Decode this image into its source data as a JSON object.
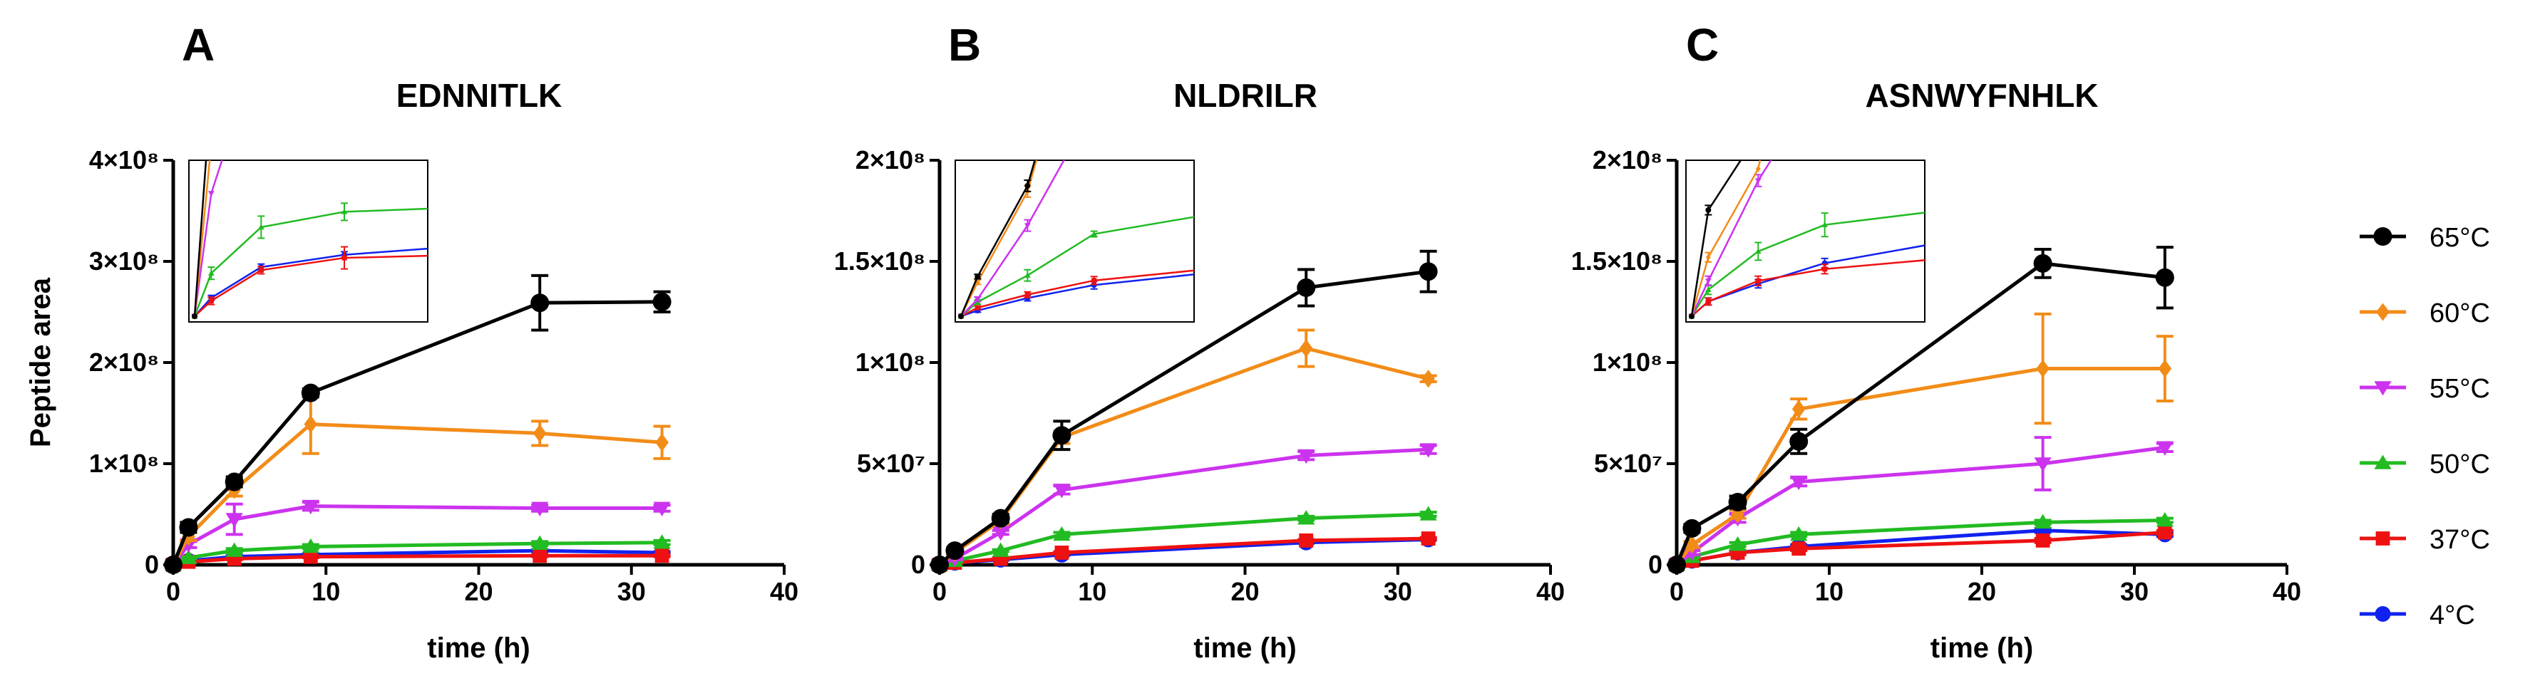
{
  "figure": {
    "legend": [
      {
        "name": "65°C",
        "color": "#000000",
        "marker": "circle"
      },
      {
        "name": "60°C",
        "color": "#F28C18",
        "marker": "diamond"
      },
      {
        "name": "55°C",
        "color": "#CC33EE",
        "marker": "triangle-down"
      },
      {
        "name": "50°C",
        "color": "#22BB22",
        "marker": "triangle-up"
      },
      {
        "name": "37°C",
        "color": "#EE1111",
        "marker": "square"
      },
      {
        "name": "4°C",
        "color": "#1122EE",
        "marker": "circle"
      }
    ]
  },
  "chart_data": [
    {
      "panel": "A",
      "type": "line",
      "title": "EDNNITLK",
      "xlabel": "time (h)",
      "ylabel": "Peptide area",
      "xlim": [
        0,
        40
      ],
      "ylim": [
        0,
        400000000
      ],
      "xticks": [
        0,
        10,
        20,
        30,
        40
      ],
      "xtick_labels": [
        "0",
        "10",
        "20",
        "30",
        "40"
      ],
      "yticks": [
        0,
        100000000,
        200000000,
        300000000,
        400000000
      ],
      "ytick_labels": [
        "0",
        "1×10⁸",
        "2×10⁸",
        "3×10⁸",
        "4×10⁸"
      ],
      "x": [
        0,
        1,
        4,
        9,
        24,
        32
      ],
      "series": [
        {
          "name": "65°C",
          "values": [
            0,
            37000000,
            82000000,
            170000000,
            259000000,
            260000000
          ],
          "errors": [
            0,
            5000000,
            5000000,
            4000000,
            27000000,
            10000000
          ]
        },
        {
          "name": "60°C",
          "values": [
            0,
            28000000,
            74000000,
            139000000,
            130000000,
            121000000
          ],
          "errors": [
            0,
            4000000,
            6000000,
            29000000,
            12000000,
            16000000
          ]
        },
        {
          "name": "55°C",
          "values": [
            0,
            20000000,
            45000000,
            58000000,
            56000000,
            56000000
          ],
          "errors": [
            0,
            3000000,
            15000000,
            4000000,
            3000000,
            3000000
          ]
        },
        {
          "name": "50°C",
          "values": [
            0,
            7000000,
            14000000,
            18000000,
            21000000,
            22000000
          ],
          "errors": [
            0,
            1000000,
            2000000,
            2000000,
            2000000,
            2000000
          ]
        },
        {
          "name": "37°C",
          "values": [
            0,
            3000000,
            6000000,
            8000000,
            9000000,
            9000000
          ],
          "errors": [
            0,
            1000000,
            1000000,
            1000000,
            1000000,
            1000000
          ]
        },
        {
          "name": "4°C",
          "values": [
            0,
            4000000,
            8000000,
            10000000,
            14000000,
            12000000
          ],
          "errors": [
            0,
            1000000,
            1000000,
            1000000,
            1000000,
            1000000
          ]
        }
      ],
      "inset": {
        "x": [
          0,
          1,
          4,
          9,
          24,
          32
        ],
        "ymax": 24000000,
        "series": [
          {
            "name": "65°C",
            "values": [
              0,
              37000000,
              82000000,
              170000000,
              259000000,
              260000000
            ],
            "errors": [
              0,
              0,
              0,
              0,
              0,
              0
            ]
          },
          {
            "name": "60°C",
            "values": [
              0,
              28000000,
              74000000,
              139000000,
              130000000,
              121000000
            ],
            "errors": [
              0,
              0,
              0,
              0,
              0,
              0
            ]
          },
          {
            "name": "55°C",
            "values": [
              0,
              20000000,
              45000000,
              58000000,
              56000000,
              56000000
            ],
            "errors": [
              0,
              0,
              0,
              0,
              0,
              0
            ]
          },
          {
            "name": "50°C",
            "values": [
              0,
              7000000,
              14500000,
              17000000,
              18500000,
              19500000
            ],
            "errors": [
              0,
              1000000,
              1800000,
              1400000,
              200000,
              2000000
            ]
          },
          {
            "name": "37°C",
            "values": [
              0,
              2500000,
              7500000,
              9500000,
              10500000,
              11000000
            ],
            "errors": [
              0,
              600000,
              600000,
              1800000,
              400000,
              400000
            ]
          },
          {
            "name": "4°C",
            "values": [
              0,
              3000000,
              8000000,
              10000000,
              13000000,
              11500000
            ],
            "errors": [
              0,
              400000,
              500000,
              500000,
              300000,
              300000
            ]
          }
        ]
      }
    },
    {
      "panel": "B",
      "type": "line",
      "title": "NLDRILR",
      "xlabel": "time (h)",
      "ylabel": "",
      "xlim": [
        0,
        40
      ],
      "ylim": [
        0,
        200000000
      ],
      "xticks": [
        0,
        10,
        20,
        30,
        40
      ],
      "xtick_labels": [
        "0",
        "10",
        "20",
        "30",
        "40"
      ],
      "yticks": [
        0,
        50000000,
        100000000,
        150000000,
        200000000
      ],
      "ytick_labels": [
        "0",
        "5×10⁷",
        "1×10⁸",
        "1.5×10⁸",
        "2×10⁸"
      ],
      "x": [
        0,
        1,
        4,
        8,
        24,
        32
      ],
      "series": [
        {
          "name": "65°C",
          "values": [
            0,
            7000000,
            23000000,
            64000000,
            137000000,
            145000000
          ],
          "errors": [
            0,
            1500000,
            2000000,
            7000000,
            9000000,
            10000000
          ]
        },
        {
          "name": "60°C",
          "values": [
            0,
            6000000,
            22000000,
            63000000,
            107000000,
            92000000
          ],
          "errors": [
            0,
            1000000,
            2000000,
            3000000,
            9000000,
            1500000
          ]
        },
        {
          "name": "55°C",
          "values": [
            0,
            3000000,
            16000000,
            37000000,
            54000000,
            57000000
          ],
          "errors": [
            0,
            500000,
            1000000,
            2000000,
            2000000,
            2000000
          ]
        },
        {
          "name": "50°C",
          "values": [
            0,
            2000000,
            7000000,
            15000000,
            23000000,
            25000000
          ],
          "errors": [
            0,
            500000,
            500000,
            1000000,
            1000000,
            1000000
          ]
        },
        {
          "name": "37°C",
          "values": [
            0,
            1000000,
            3000000,
            6000000,
            12000000,
            13000000
          ],
          "errors": [
            0,
            300000,
            500000,
            500000,
            500000,
            500000
          ]
        },
        {
          "name": "4°C",
          "values": [
            0,
            1000000,
            2500000,
            5000000,
            11000000,
            12500000
          ],
          "errors": [
            0,
            300000,
            300000,
            300000,
            300000,
            300000
          ]
        }
      ],
      "inset": {
        "x": [
          0,
          1,
          4,
          8,
          24,
          32
        ],
        "ymax": 26000000,
        "series": [
          {
            "name": "65°C",
            "values": [
              0,
              7000000,
              23000000,
              64000000,
              137000000,
              145000000
            ],
            "errors": [
              0,
              400000,
              1000000,
              0,
              0,
              0
            ]
          },
          {
            "name": "60°C",
            "values": [
              0,
              6000000,
              22000000,
              63000000,
              107000000,
              92000000
            ],
            "errors": [
              0,
              400000,
              1000000,
              0,
              0,
              0
            ]
          },
          {
            "name": "55°C",
            "values": [
              0,
              3000000,
              16000000,
              37000000,
              54000000,
              57000000
            ],
            "errors": [
              0,
              400000,
              1000000,
              0,
              0,
              0
            ]
          },
          {
            "name": "50°C",
            "values": [
              0,
              2500000,
              7200000,
              14500000,
              22500000,
              25000000
            ],
            "errors": [
              0,
              400000,
              1000000,
              500000,
              500000,
              400000
            ]
          },
          {
            "name": "37°C",
            "values": [
              0,
              1500000,
              3800000,
              6300000,
              11000000,
              12500000
            ],
            "errors": [
              0,
              300000,
              500000,
              700000,
              400000,
              300000
            ]
          },
          {
            "name": "4°C",
            "values": [
              0,
              1000000,
              3200000,
              5500000,
              10500000,
              12000000
            ],
            "errors": [
              0,
              300000,
              500000,
              700000,
              400000,
              300000
            ]
          }
        ]
      }
    },
    {
      "panel": "C",
      "type": "line",
      "title": "ASNWYFNHLK",
      "xlabel": "time (h)",
      "ylabel": "",
      "xlim": [
        0,
        40
      ],
      "ylim": [
        0,
        200000000
      ],
      "xticks": [
        0,
        10,
        20,
        30,
        40
      ],
      "xtick_labels": [
        "0",
        "10",
        "20",
        "30",
        "40"
      ],
      "yticks": [
        0,
        50000000,
        100000000,
        150000000,
        200000000
      ],
      "ytick_labels": [
        "0",
        "5×10⁷",
        "1×10⁸",
        "1.5×10⁸",
        "2×10⁸"
      ],
      "x": [
        0,
        1,
        4,
        8,
        24,
        32
      ],
      "series": [
        {
          "name": "65°C",
          "values": [
            0,
            18000000,
            31000000,
            61000000,
            149000000,
            142000000
          ],
          "errors": [
            0,
            2000000,
            3000000,
            6000000,
            7000000,
            15000000
          ]
        },
        {
          "name": "60°C",
          "values": [
            0,
            10000000,
            25000000,
            77000000,
            97000000,
            97000000
          ],
          "errors": [
            0,
            1500000,
            2000000,
            5000000,
            27000000,
            16000000
          ]
        },
        {
          "name": "55°C",
          "values": [
            0,
            6000000,
            23000000,
            41000000,
            50000000,
            58000000
          ],
          "errors": [
            0,
            1000000,
            2000000,
            2000000,
            13000000,
            2000000
          ]
        },
        {
          "name": "50°C",
          "values": [
            0,
            4000000,
            10000000,
            15000000,
            21000000,
            22000000
          ],
          "errors": [
            0,
            500000,
            1000000,
            1000000,
            1000000,
            1000000
          ]
        },
        {
          "name": "37°C",
          "values": [
            0,
            2000000,
            6000000,
            8000000,
            12000000,
            16000000
          ],
          "errors": [
            0,
            500000,
            1000000,
            1000000,
            1000000,
            1000000
          ]
        },
        {
          "name": "4°C",
          "values": [
            0,
            2000000,
            6000000,
            9000000,
            17000000,
            15000000
          ],
          "errors": [
            0,
            500000,
            1000000,
            1000000,
            1000000,
            1000000
          ]
        }
      ],
      "inset": {
        "x": [
          0,
          1,
          4,
          8,
          24,
          32
        ],
        "ymax": 25000000,
        "series": [
          {
            "name": "65°C",
            "values": [
              0,
              18000000,
              31000000,
              61000000,
              149000000,
              142000000
            ],
            "errors": [
              0,
              800000,
              0,
              0,
              0,
              0
            ]
          },
          {
            "name": "60°C",
            "values": [
              0,
              10000000,
              25000000,
              77000000,
              97000000,
              97000000
            ],
            "errors": [
              0,
              800000,
              0,
              0,
              0,
              0
            ]
          },
          {
            "name": "55°C",
            "values": [
              0,
              6000000,
              23000000,
              41000000,
              50000000,
              58000000
            ],
            "errors": [
              0,
              800000,
              1000000,
              0,
              0,
              0
            ]
          },
          {
            "name": "50°C",
            "values": [
              0,
              4500000,
              11000000,
              15500000,
              21000000,
              22000000
            ],
            "errors": [
              0,
              800000,
              1500000,
              2000000,
              1200000,
              1500000
            ]
          },
          {
            "name": "37°C",
            "values": [
              0,
              2500000,
              6000000,
              8000000,
              12000000,
              16000000
            ],
            "errors": [
              0,
              600000,
              800000,
              800000,
              1000000,
              1500000
            ]
          },
          {
            "name": "4°C",
            "values": [
              0,
              2500000,
              5500000,
              9000000,
              17000000,
              15000000
            ],
            "errors": [
              0,
              600000,
              700000,
              800000,
              1500000,
              1500000
            ]
          }
        ]
      }
    }
  ]
}
